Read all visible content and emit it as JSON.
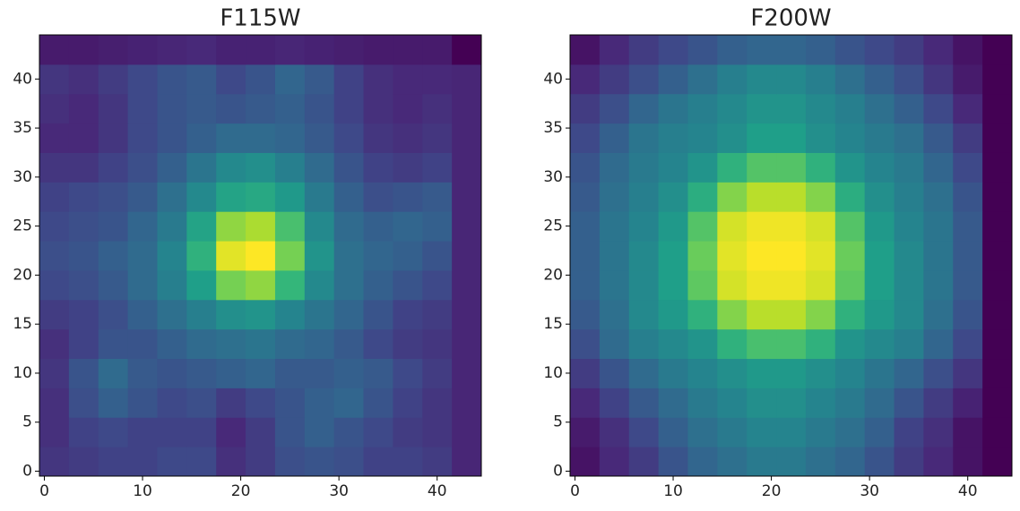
{
  "chart_data": [
    {
      "type": "heatmap",
      "title": "F115W",
      "colormap": "viridis",
      "xlim": [
        -0.5,
        44.5
      ],
      "ylim": [
        -0.5,
        44.5
      ],
      "xticks": [
        0,
        10,
        20,
        30,
        40
      ],
      "yticks": [
        0,
        5,
        10,
        15,
        20,
        25,
        30,
        35,
        40
      ],
      "z": [
        [
          0.2,
          0.22,
          0.24,
          0.24,
          0.26,
          0.26,
          0.18,
          0.22,
          0.28,
          0.3,
          0.28,
          0.24,
          0.24,
          0.22,
          0.15
        ],
        [
          0.18,
          0.24,
          0.26,
          0.24,
          0.24,
          0.24,
          0.16,
          0.22,
          0.3,
          0.34,
          0.3,
          0.26,
          0.22,
          0.2,
          0.15
        ],
        [
          0.18,
          0.28,
          0.34,
          0.3,
          0.26,
          0.28,
          0.22,
          0.26,
          0.3,
          0.34,
          0.36,
          0.3,
          0.24,
          0.2,
          0.15
        ],
        [
          0.2,
          0.3,
          0.38,
          0.32,
          0.3,
          0.32,
          0.34,
          0.36,
          0.32,
          0.32,
          0.34,
          0.32,
          0.26,
          0.22,
          0.15
        ],
        [
          0.18,
          0.24,
          0.3,
          0.3,
          0.34,
          0.38,
          0.4,
          0.42,
          0.38,
          0.36,
          0.32,
          0.26,
          0.22,
          0.2,
          0.15
        ],
        [
          0.22,
          0.24,
          0.28,
          0.34,
          0.4,
          0.46,
          0.52,
          0.54,
          0.48,
          0.42,
          0.36,
          0.3,
          0.24,
          0.22,
          0.15
        ],
        [
          0.26,
          0.28,
          0.32,
          0.38,
          0.46,
          0.58,
          0.8,
          0.84,
          0.68,
          0.5,
          0.4,
          0.34,
          0.3,
          0.26,
          0.15
        ],
        [
          0.28,
          0.3,
          0.34,
          0.38,
          0.48,
          0.66,
          0.96,
          1.0,
          0.8,
          0.54,
          0.4,
          0.36,
          0.34,
          0.3,
          0.15
        ],
        [
          0.26,
          0.28,
          0.3,
          0.36,
          0.44,
          0.6,
          0.84,
          0.88,
          0.72,
          0.5,
          0.38,
          0.34,
          0.36,
          0.34,
          0.15
        ],
        [
          0.24,
          0.26,
          0.28,
          0.32,
          0.4,
          0.5,
          0.6,
          0.62,
          0.56,
          0.44,
          0.34,
          0.28,
          0.3,
          0.32,
          0.15
        ],
        [
          0.2,
          0.2,
          0.24,
          0.28,
          0.34,
          0.42,
          0.5,
          0.52,
          0.46,
          0.38,
          0.3,
          0.24,
          0.22,
          0.24,
          0.15
        ],
        [
          0.16,
          0.16,
          0.2,
          0.26,
          0.3,
          0.34,
          0.38,
          0.38,
          0.36,
          0.32,
          0.26,
          0.2,
          0.18,
          0.2,
          0.15
        ],
        [
          0.18,
          0.16,
          0.2,
          0.26,
          0.3,
          0.32,
          0.3,
          0.32,
          0.34,
          0.3,
          0.24,
          0.18,
          0.16,
          0.18,
          0.15
        ],
        [
          0.2,
          0.18,
          0.22,
          0.26,
          0.3,
          0.32,
          0.26,
          0.3,
          0.36,
          0.32,
          0.24,
          0.18,
          0.16,
          0.16,
          0.15
        ],
        [
          0.12,
          0.12,
          0.13,
          0.14,
          0.15,
          0.16,
          0.14,
          0.14,
          0.15,
          0.14,
          0.13,
          0.12,
          0.12,
          0.12,
          0.05
        ]
      ]
    },
    {
      "type": "heatmap",
      "title": "F200W",
      "colormap": "viridis",
      "xlim": [
        -0.5,
        44.5
      ],
      "ylim": [
        -0.5,
        44.5
      ],
      "xticks": [
        0,
        10,
        20,
        30,
        40
      ],
      "yticks": [
        0,
        5,
        10,
        15,
        20,
        25,
        30,
        35,
        40
      ],
      "z": [
        [
          0.1,
          0.16,
          0.22,
          0.3,
          0.36,
          0.4,
          0.44,
          0.44,
          0.4,
          0.36,
          0.3,
          0.22,
          0.16,
          0.1,
          0.05
        ],
        [
          0.12,
          0.18,
          0.26,
          0.34,
          0.4,
          0.44,
          0.48,
          0.48,
          0.44,
          0.4,
          0.34,
          0.24,
          0.18,
          0.1,
          0.05
        ],
        [
          0.16,
          0.24,
          0.32,
          0.38,
          0.44,
          0.48,
          0.52,
          0.52,
          0.48,
          0.44,
          0.38,
          0.3,
          0.22,
          0.14,
          0.05
        ],
        [
          0.22,
          0.3,
          0.38,
          0.44,
          0.48,
          0.52,
          0.56,
          0.56,
          0.52,
          0.48,
          0.42,
          0.36,
          0.28,
          0.2,
          0.05
        ],
        [
          0.28,
          0.38,
          0.46,
          0.5,
          0.54,
          0.66,
          0.72,
          0.72,
          0.66,
          0.54,
          0.5,
          0.46,
          0.36,
          0.26,
          0.05
        ],
        [
          0.32,
          0.4,
          0.5,
          0.56,
          0.66,
          0.82,
          0.9,
          0.9,
          0.82,
          0.66,
          0.56,
          0.5,
          0.4,
          0.3,
          0.05
        ],
        [
          0.34,
          0.42,
          0.5,
          0.58,
          0.76,
          0.94,
          0.98,
          0.98,
          0.94,
          0.76,
          0.58,
          0.5,
          0.42,
          0.32,
          0.05
        ],
        [
          0.34,
          0.42,
          0.5,
          0.58,
          0.78,
          0.96,
          1.0,
          1.0,
          0.96,
          0.78,
          0.58,
          0.5,
          0.42,
          0.32,
          0.05
        ],
        [
          0.34,
          0.42,
          0.48,
          0.56,
          0.74,
          0.94,
          0.98,
          0.98,
          0.94,
          0.74,
          0.56,
          0.48,
          0.42,
          0.32,
          0.05
        ],
        [
          0.32,
          0.4,
          0.46,
          0.52,
          0.64,
          0.82,
          0.9,
          0.9,
          0.82,
          0.64,
          0.52,
          0.46,
          0.4,
          0.3,
          0.05
        ],
        [
          0.3,
          0.38,
          0.44,
          0.48,
          0.54,
          0.66,
          0.74,
          0.74,
          0.66,
          0.54,
          0.48,
          0.44,
          0.36,
          0.26,
          0.05
        ],
        [
          0.26,
          0.34,
          0.42,
          0.46,
          0.48,
          0.52,
          0.58,
          0.58,
          0.52,
          0.48,
          0.44,
          0.4,
          0.32,
          0.22,
          0.05
        ],
        [
          0.22,
          0.28,
          0.36,
          0.42,
          0.46,
          0.5,
          0.54,
          0.54,
          0.5,
          0.46,
          0.4,
          0.34,
          0.26,
          0.16,
          0.05
        ],
        [
          0.16,
          0.22,
          0.28,
          0.34,
          0.4,
          0.46,
          0.5,
          0.5,
          0.46,
          0.4,
          0.34,
          0.28,
          0.2,
          0.12,
          0.05
        ],
        [
          0.1,
          0.16,
          0.22,
          0.26,
          0.3,
          0.34,
          0.36,
          0.36,
          0.34,
          0.3,
          0.26,
          0.22,
          0.16,
          0.1,
          0.05
        ]
      ]
    }
  ]
}
